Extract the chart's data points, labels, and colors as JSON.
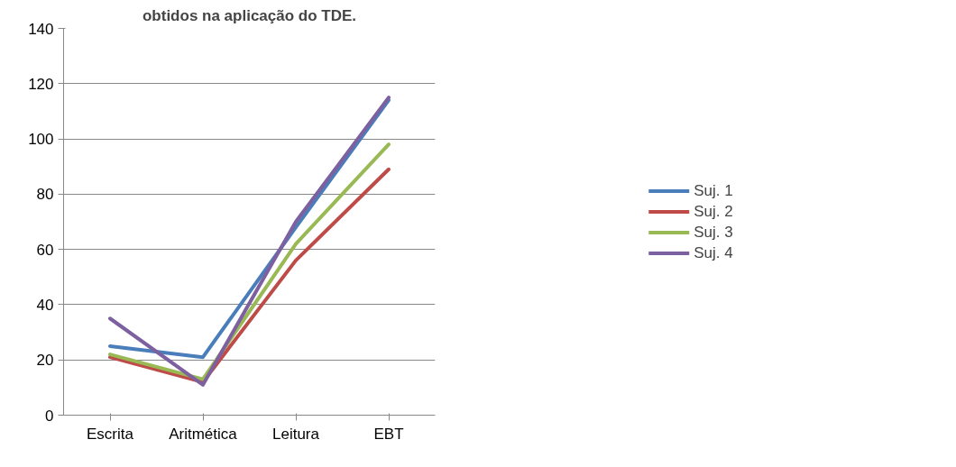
{
  "chart_data": {
    "type": "line",
    "title": "obtidos na aplicação do TDE.",
    "categories": [
      "Escrita",
      "Aritmética",
      "Leitura",
      "EBT"
    ],
    "series": [
      {
        "name": "Suj. 1",
        "color": "#4a7ebb",
        "values": [
          25,
          21,
          68,
          114
        ]
      },
      {
        "name": "Suj. 2",
        "color": "#be4b48",
        "values": [
          21,
          12,
          56,
          89
        ]
      },
      {
        "name": "Suj. 3",
        "color": "#98b954",
        "values": [
          22,
          13,
          62,
          98
        ]
      },
      {
        "name": "Suj. 4",
        "color": "#7d60a0",
        "values": [
          35,
          11,
          70,
          115
        ]
      }
    ],
    "ylim": [
      0,
      140
    ],
    "yticks": [
      0,
      20,
      40,
      60,
      80,
      100,
      120,
      140
    ],
    "grid": "y",
    "legend": "right",
    "marker": "none",
    "line_style": "solid"
  }
}
